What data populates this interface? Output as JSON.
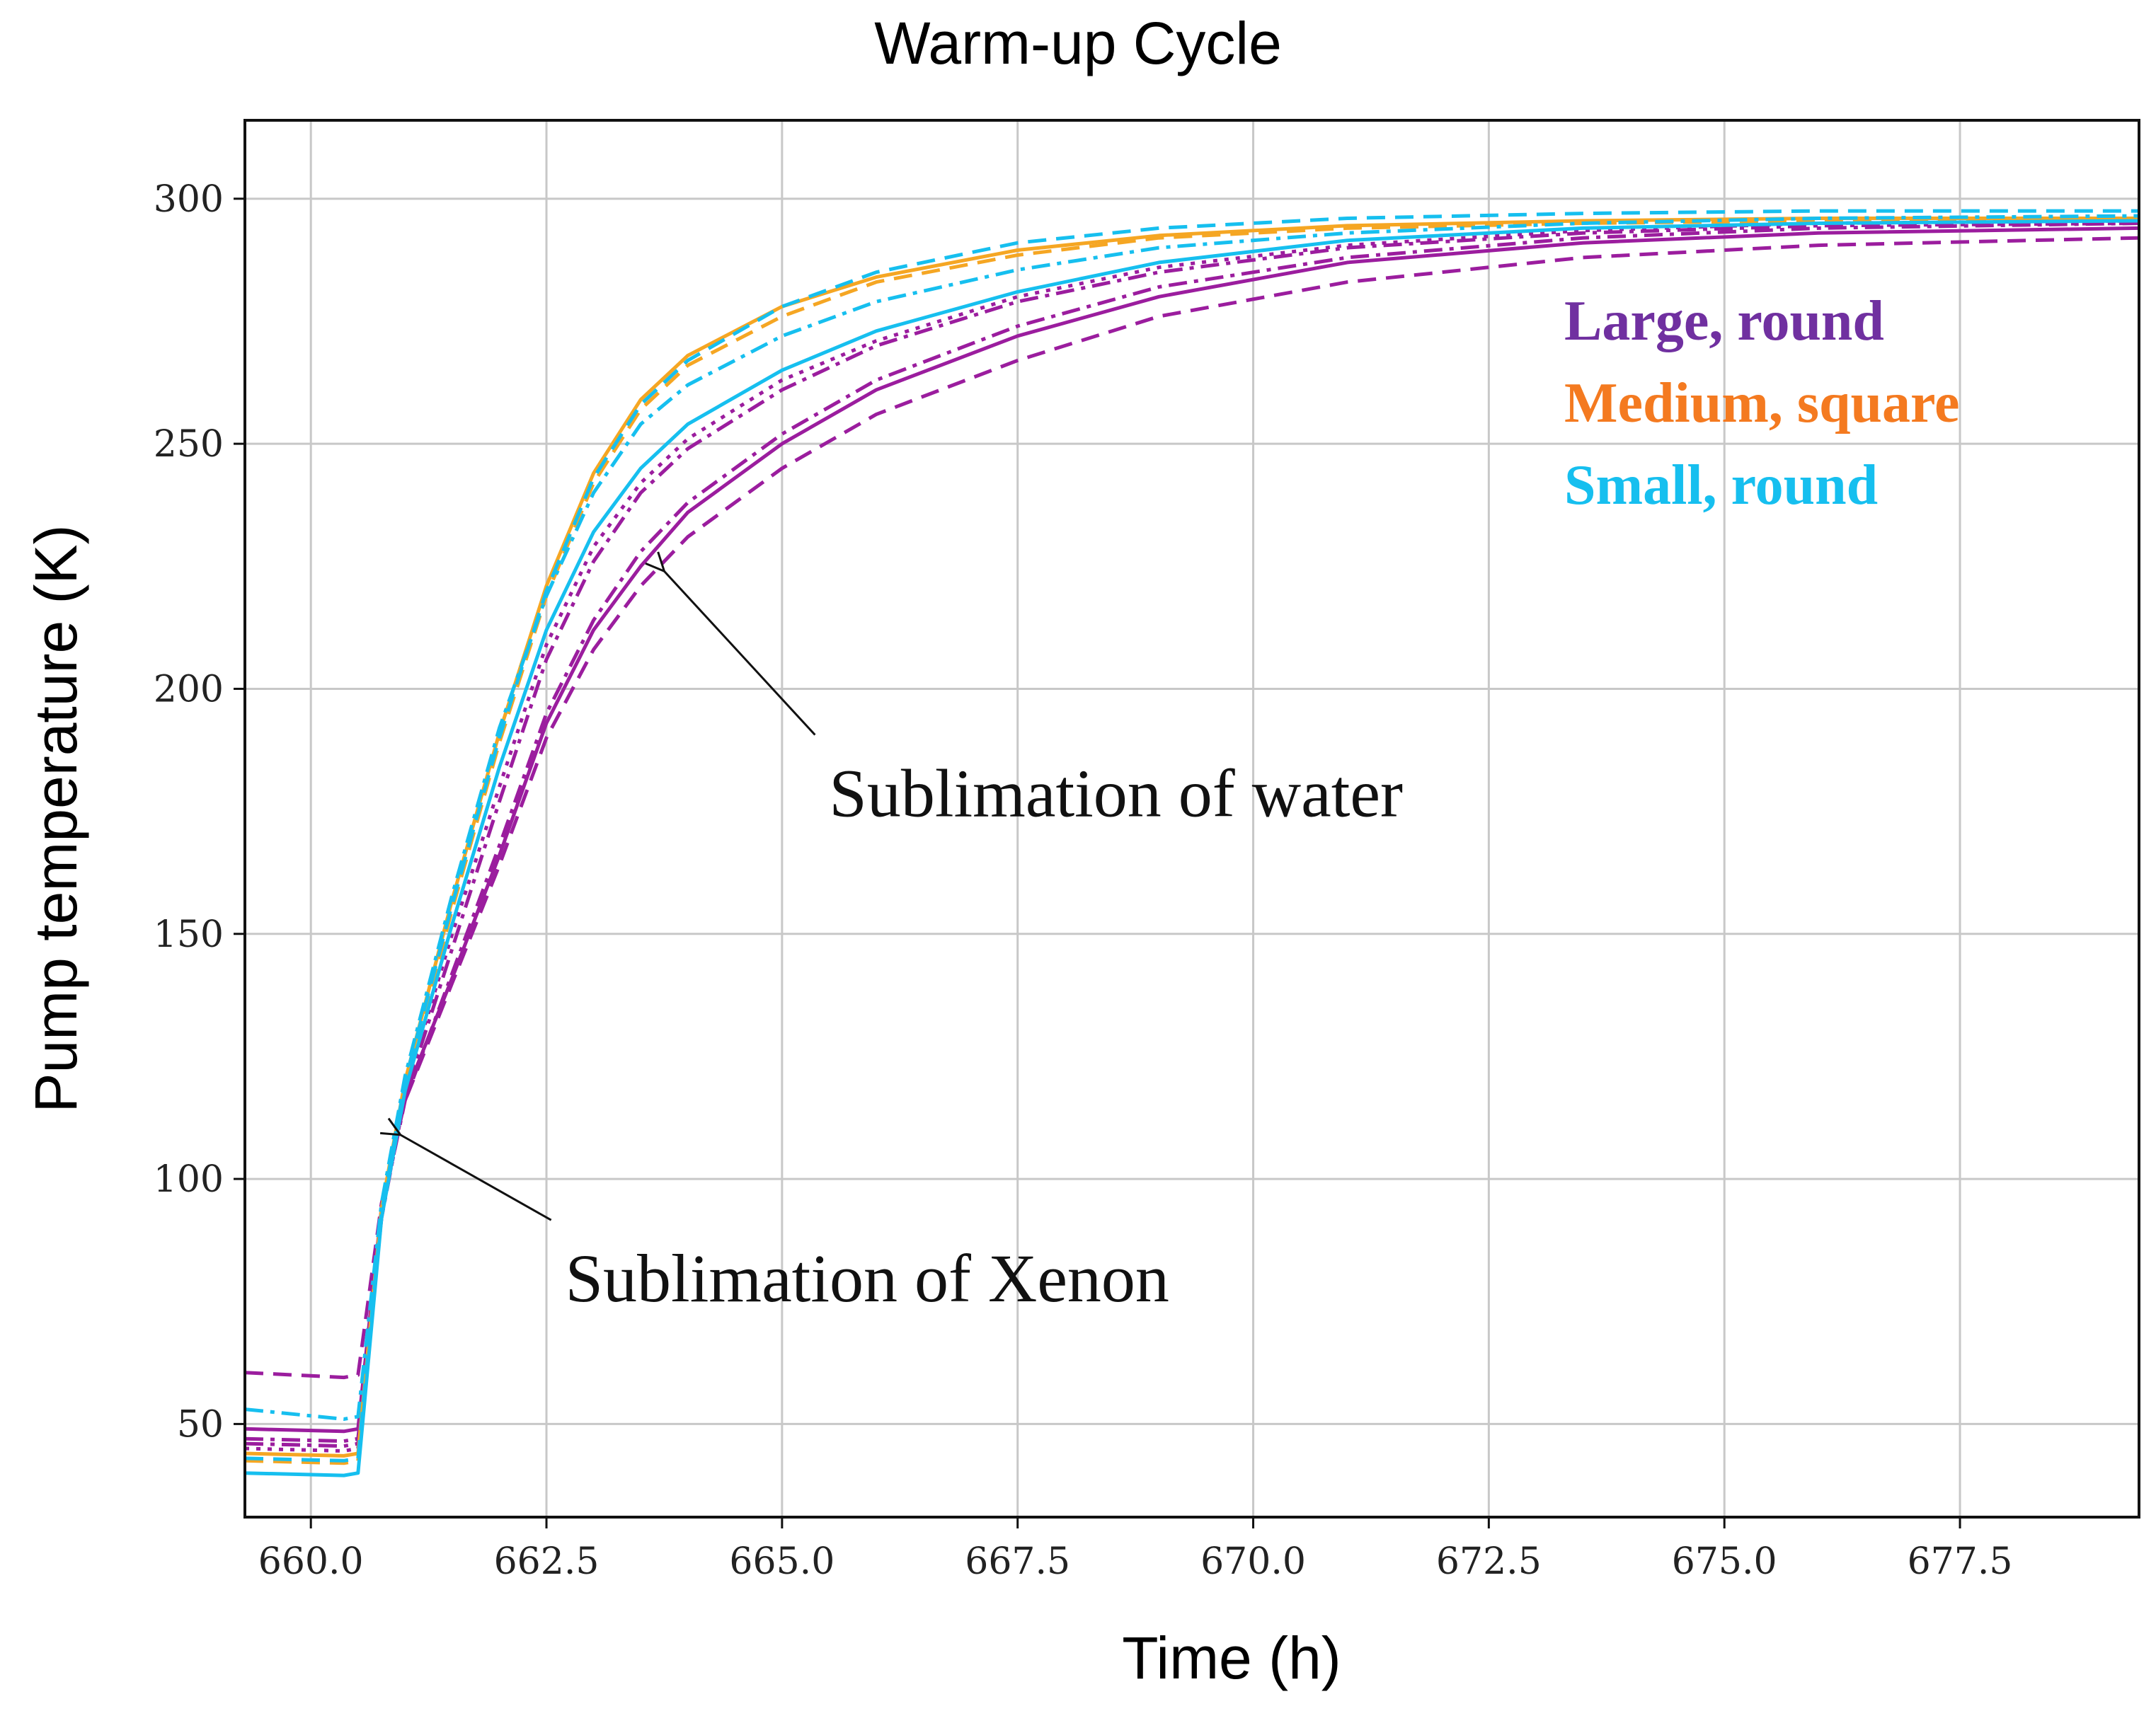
{
  "chart_data": {
    "type": "line",
    "title": "Warm-up Cycle",
    "xlabel": "Time (h)",
    "ylabel": "Pump temperature (K)",
    "xlim": [
      659.3,
      679.4
    ],
    "ylim": [
      31,
      316
    ],
    "xticks": [
      660.0,
      662.5,
      665.0,
      667.5,
      670.0,
      672.5,
      675.0,
      677.5
    ],
    "xtick_labels": [
      "660.0",
      "662.5",
      "665.0",
      "667.5",
      "670.0",
      "672.5",
      "675.0",
      "677.5"
    ],
    "yticks": [
      50,
      100,
      150,
      200,
      250,
      300
    ],
    "ytick_labels": [
      "50",
      "100",
      "150",
      "200",
      "250",
      "300"
    ],
    "grid": true,
    "legend": [
      {
        "label": "Large, round",
        "color": "#7030a0"
      },
      {
        "label": "Medium, square",
        "color": "#f47a20"
      },
      {
        "label": "Small, round",
        "color": "#16bfef"
      }
    ],
    "annotations": [
      {
        "text": "Sublimation of water",
        "x": 665.5,
        "y": 174,
        "arrow_to": [
          663.75,
          224
        ]
      },
      {
        "text": "Sublimation of Xenon",
        "x": 662.7,
        "y": 75,
        "arrow_to": [
          660.95,
          109
        ]
      }
    ],
    "series": [
      {
        "group": "Large, round",
        "color": "#9b1d9e",
        "dash": "dash",
        "x": [
          659.3,
          660.35,
          660.5,
          660.75,
          661.0,
          661.5,
          662.0,
          662.5,
          663.0,
          663.5,
          664.0,
          665.0,
          666.0,
          667.5,
          669.0,
          671.0,
          673.5,
          676.0,
          679.4
        ],
        "y": [
          60.5,
          59.5,
          60,
          95,
          116,
          140,
          164,
          190,
          208,
          221,
          231,
          245,
          256,
          267,
          276,
          283,
          288,
          290.5,
          292
        ]
      },
      {
        "group": "Large, round",
        "color": "#9b1d9e",
        "dash": "solid",
        "x": [
          659.3,
          660.35,
          660.5,
          660.75,
          661.0,
          661.5,
          662.0,
          662.5,
          663.0,
          663.5,
          664.0,
          665.0,
          666.0,
          667.5,
          669.0,
          671.0,
          673.5,
          676.0,
          679.4
        ],
        "y": [
          49,
          48.5,
          49,
          94,
          117,
          141,
          166,
          193,
          212,
          225,
          236,
          250,
          261,
          272,
          280,
          287,
          291,
          293,
          294
        ]
      },
      {
        "group": "Large, round",
        "color": "#9b1d9e",
        "dash": "dashdot",
        "x": [
          659.3,
          660.35,
          660.5,
          660.75,
          661.0,
          661.5,
          662.0,
          662.5,
          663.0,
          663.5,
          664.0,
          665.0,
          666.0,
          667.5,
          669.0,
          671.0,
          673.5,
          676.0,
          679.4
        ],
        "y": [
          47,
          46.5,
          47,
          93,
          116,
          142,
          168,
          195,
          214,
          228,
          238,
          252,
          263,
          274,
          282,
          288,
          292,
          294,
          295
        ]
      },
      {
        "group": "Large, round",
        "color": "#9b1d9e",
        "dash": "dot",
        "x": [
          659.3,
          660.35,
          660.5,
          660.75,
          661.0,
          661.5,
          662.0,
          662.5,
          663.0,
          663.5,
          664.0,
          665.0,
          666.0,
          667.5,
          669.0,
          671.0,
          673.5,
          676.0,
          679.4
        ],
        "y": [
          45,
          44.5,
          45,
          92,
          118,
          150,
          180,
          209,
          229,
          242,
          251,
          263,
          271,
          280,
          286,
          290.5,
          293.5,
          295,
          295.5
        ]
      },
      {
        "group": "Large, round",
        "color": "#9b1d9e",
        "dash": "dashdot",
        "x": [
          659.3,
          660.35,
          660.5,
          660.75,
          661.0,
          661.5,
          662.0,
          662.5,
          663.0,
          663.5,
          664.0,
          665.0,
          666.0,
          667.5,
          669.0,
          671.0,
          673.5,
          676.0,
          679.4
        ],
        "y": [
          46,
          45.5,
          46,
          92,
          117,
          147,
          177,
          206,
          226,
          240,
          249,
          261,
          270,
          279,
          285,
          290,
          293,
          294.5,
          295
        ]
      },
      {
        "group": "Medium, square",
        "color": "#f5a623",
        "dash": "solid",
        "x": [
          659.3,
          660.35,
          660.5,
          660.75,
          661.0,
          661.5,
          662.0,
          662.5,
          663.0,
          663.5,
          664.0,
          665.0,
          666.0,
          667.5,
          669.0,
          671.0,
          673.5,
          676.0,
          679.4
        ],
        "y": [
          44,
          43.5,
          44,
          94,
          120,
          157,
          191,
          221,
          244,
          259,
          268,
          278,
          284,
          289.5,
          292.5,
          294.5,
          295.5,
          296,
          296
        ]
      },
      {
        "group": "Medium, square",
        "color": "#f5a623",
        "dash": "dash",
        "x": [
          659.3,
          660.35,
          660.5,
          660.75,
          661.0,
          661.5,
          662.0,
          662.5,
          663.0,
          663.5,
          664.0,
          665.0,
          666.0,
          667.5,
          669.0,
          671.0,
          673.5,
          676.0,
          679.4
        ],
        "y": [
          42.5,
          42,
          42.5,
          93,
          119,
          155,
          189,
          219,
          242,
          257,
          266,
          276,
          283,
          288.5,
          292,
          294,
          295,
          295.5,
          295.5
        ]
      },
      {
        "group": "Small, round",
        "color": "#16bfef",
        "dash": "dashdot",
        "x": [
          659.3,
          660.35,
          660.5,
          660.75,
          661.0,
          661.5,
          662.0,
          662.5,
          663.0,
          663.5,
          664.0,
          665.0,
          666.0,
          667.5,
          669.0,
          671.0,
          673.5,
          676.0,
          679.4
        ],
        "y": [
          53,
          51,
          51.5,
          95,
          121,
          158,
          192,
          219,
          240,
          254,
          262,
          272,
          279,
          285.5,
          290,
          293,
          295,
          296,
          296.5
        ]
      },
      {
        "group": "Small, round",
        "color": "#16bfef",
        "dash": "solid",
        "x": [
          659.3,
          660.35,
          660.5,
          660.75,
          661.0,
          661.5,
          662.0,
          662.5,
          663.0,
          663.5,
          664.0,
          665.0,
          666.0,
          667.5,
          669.0,
          671.0,
          673.5,
          676.0,
          679.4
        ],
        "y": [
          40,
          39.5,
          40,
          92,
          118,
          152,
          184,
          212,
          232,
          245,
          254,
          265,
          273,
          281,
          287,
          291.5,
          294,
          295,
          295.5
        ]
      },
      {
        "group": "Small, round",
        "color": "#16bfef",
        "dash": "dash",
        "x": [
          659.3,
          660.35,
          660.5,
          660.75,
          661.0,
          661.5,
          662.0,
          662.5,
          663.0,
          663.5,
          664.0,
          665.0,
          666.0,
          667.5,
          669.0,
          671.0,
          673.5,
          676.0,
          679.4
        ],
        "y": [
          43,
          42.5,
          43,
          93,
          120,
          156,
          190,
          220,
          243,
          258,
          267,
          278,
          285,
          291,
          294,
          296,
          297,
          297.5,
          297.5
        ]
      }
    ]
  }
}
